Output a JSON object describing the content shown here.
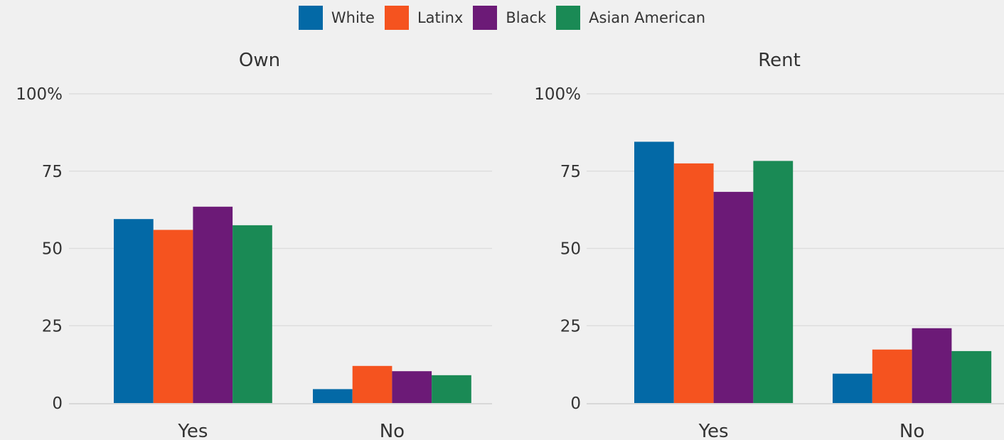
{
  "colors": {
    "White": "#0369a6",
    "Latinx": "#f5531f",
    "Black": "#6c1a77",
    "Asian American": "#1a8a55",
    "grid": "#dedede",
    "axis": "#d8d8d8",
    "text": "#333333"
  },
  "legend": {
    "items": [
      "White",
      "Latinx",
      "Black",
      "Asian American"
    ]
  },
  "chart_data": [
    {
      "type": "bar",
      "title": "Own",
      "categories": [
        "Yes",
        "No"
      ],
      "series": [
        {
          "name": "White",
          "values": [
            59.5,
            4.5
          ]
        },
        {
          "name": "Latinx",
          "values": [
            56,
            12
          ]
        },
        {
          "name": "Black",
          "values": [
            63.5,
            10.3
          ]
        },
        {
          "name": "Asian American",
          "values": [
            57.5,
            9
          ]
        }
      ],
      "yticks": [
        "0",
        "25",
        "50",
        "75",
        "100%"
      ],
      "ylim": [
        0,
        100
      ],
      "grid": true,
      "legend_position": "top-center"
    },
    {
      "type": "bar",
      "title": "Rent",
      "categories": [
        "Yes",
        "No"
      ],
      "series": [
        {
          "name": "White",
          "values": [
            84.5,
            9.5
          ]
        },
        {
          "name": "Latinx",
          "values": [
            77.5,
            17.3
          ]
        },
        {
          "name": "Black",
          "values": [
            68.3,
            24.2
          ]
        },
        {
          "name": "Asian American",
          "values": [
            78.3,
            16.8
          ]
        }
      ],
      "yticks": [
        "0",
        "25",
        "50",
        "75",
        "100%"
      ],
      "ylim": [
        0,
        100
      ],
      "grid": true,
      "legend_position": "top-center"
    }
  ]
}
